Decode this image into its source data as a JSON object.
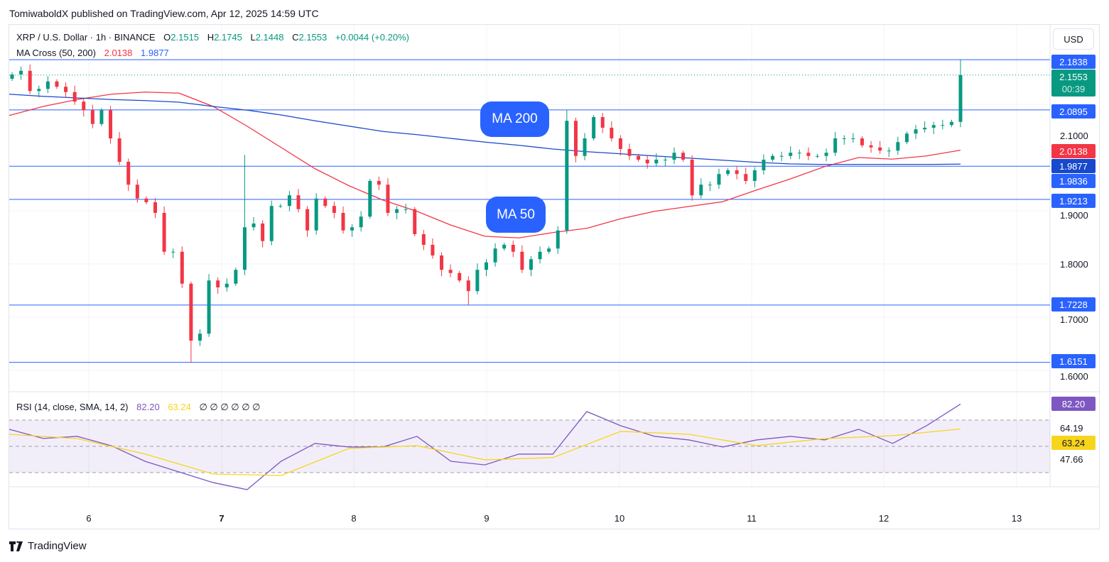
{
  "publisher_line": "TomiwaboldX published on TradingView.com, Apr 12, 2025 14:59 UTC",
  "legend": {
    "symbol": "XRP / U.S. Dollar · 1h · BINANCE",
    "o_label": "O",
    "o": "2.1515",
    "h_label": "H",
    "h": "2.1745",
    "l_label": "L",
    "l": "2.1448",
    "c_label": "C",
    "c": "2.1553",
    "change": "+0.0044 (+0.20%)",
    "ma_title": "MA Cross (50, 200)",
    "ma50": "2.0138",
    "ma200": "1.9877",
    "rsi_title": "RSI (14, close, SMA, 14, 2)",
    "rsi": "82.20",
    "rsi_sma": "63.24",
    "rsi_extra": "∅ ∅ ∅ ∅ ∅ ∅"
  },
  "currency_button": "USD",
  "badges": {
    "ma200": "MA 200",
    "ma50": "MA 50"
  },
  "price_labels": {
    "l1": "2.1838",
    "last": "2.1553",
    "countdown": "00:39",
    "l2": "2.0895",
    "ma50": "2.0138",
    "ma200": "1.9877",
    "l3": "1.9836",
    "l4": "1.9213",
    "l5": "1.7228",
    "l6": "1.6151"
  },
  "price_ticks": [
    "2.1000",
    "1.9000",
    "1.8000",
    "1.7000",
    "1.6000"
  ],
  "rsi_ticks": {
    "upper": "64.19",
    "lower": "47.66",
    "rsi": "82.20",
    "sma": "63.24"
  },
  "time_ticks": [
    "6",
    "7",
    "8",
    "9",
    "10",
    "11",
    "12",
    "13"
  ],
  "logo": "TradingView",
  "colors": {
    "up": "#089981",
    "down": "#f23645",
    "ma50": "#f23645",
    "ma200": "#1848cc",
    "hline": "#2962ff",
    "rsi": "#7e57c2",
    "rsi_sma": "#f7d51d"
  },
  "chart_data": {
    "type": "candlestick",
    "title": "XRP / U.S. Dollar · 1h · BINANCE",
    "ylim": [
      1.6,
      2.2
    ],
    "first_open": 2.148,
    "close": [
      2.156,
      2.163,
      2.125,
      2.129,
      2.143,
      2.133,
      2.123,
      2.105,
      2.089,
      2.063,
      2.089,
      2.036,
      1.992,
      1.949,
      1.923,
      1.916,
      1.896,
      1.823,
      1.823,
      1.763,
      1.656,
      1.669,
      1.769,
      1.756,
      1.763,
      1.789,
      1.869,
      1.876,
      1.843,
      1.909,
      1.909,
      1.929,
      1.903,
      1.863,
      1.923,
      1.909,
      1.896,
      1.863,
      1.869,
      1.889,
      1.956,
      1.949,
      1.896,
      1.903,
      1.903,
      1.856,
      1.836,
      1.816,
      1.789,
      1.783,
      1.769,
      1.749,
      1.789,
      1.803,
      1.829,
      1.836,
      1.823,
      1.789,
      1.809,
      1.823,
      1.829,
      1.863,
      2.069,
      2.003,
      2.036,
      2.076,
      2.056,
      2.036,
      2.016,
      2.003,
      1.996,
      1.989,
      1.996,
      1.996,
      2.009,
      1.996,
      1.929,
      1.949,
      1.949,
      1.969,
      1.976,
      1.969,
      1.956,
      1.976,
      1.996,
      2.003,
      2.003,
      2.009,
      2.009,
      2.003,
      2.003,
      2.009,
      2.036,
      2.036,
      2.036,
      2.023,
      2.019,
      2.013,
      2.013,
      2.029,
      2.045,
      2.053,
      2.056,
      2.061,
      2.061,
      2.067,
      2.155
    ],
    "wick_overrides": [
      {
        "i": 20,
        "low": 1.6151
      },
      {
        "i": 26,
        "high": 2.005
      },
      {
        "i": 51,
        "low": 1.7228
      },
      {
        "i": 62,
        "high": 2.09
      },
      {
        "i": 106,
        "high": 2.1838
      }
    ],
    "ma50": [
      2.079,
      2.096,
      2.109,
      2.119,
      2.123,
      2.121,
      2.096,
      2.059,
      2.019,
      1.979,
      1.947,
      1.92,
      1.899,
      1.873,
      1.852,
      1.849,
      1.859,
      1.867,
      1.885,
      1.899,
      1.908,
      1.917,
      1.939,
      1.96,
      1.983,
      2.0,
      1.997,
      2.003,
      2.0138
    ],
    "ma200": [
      2.119,
      2.115,
      2.112,
      2.109,
      2.107,
      2.104,
      2.096,
      2.089,
      2.08,
      2.069,
      2.059,
      2.049,
      2.043,
      2.036,
      2.029,
      2.023,
      2.016,
      2.011,
      2.007,
      2.003,
      1.999,
      1.995,
      1.991,
      1.988,
      1.987,
      1.987,
      1.987,
      1.987,
      1.9877
    ],
    "horizontal_levels": [
      2.1838,
      2.0895,
      1.9836,
      1.9213,
      1.7228,
      1.6151
    ],
    "rsi": [
      63,
      56,
      57.6,
      50.5,
      38.6,
      30.5,
      22.4,
      17,
      38.6,
      52.2,
      49.5,
      49.5,
      57.6,
      38.6,
      35.9,
      44.1,
      44.1,
      76.5,
      65.7,
      57.6,
      54.9,
      49.5,
      54.9,
      57.6,
      54.9,
      63,
      52.2,
      65.7,
      82.2
    ],
    "rsi_sma": [
      59.2,
      55.9,
      44.1,
      28.9,
      27.8,
      48.4,
      50.5,
      39.7,
      41.4,
      61.4,
      59.2,
      50.5,
      55.9,
      58.1,
      63.24
    ],
    "rsi_bands": [
      70,
      50,
      30
    ]
  }
}
